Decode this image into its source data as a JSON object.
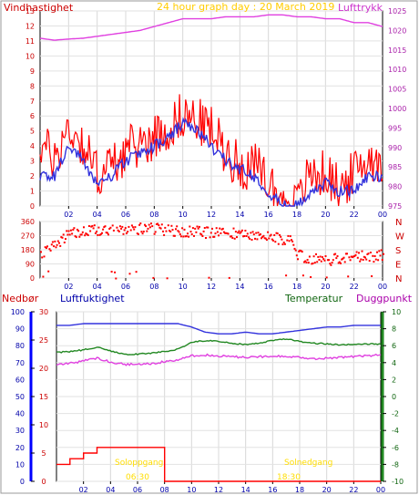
{
  "top": {
    "title": "24 hour graph day : 20 March 2019",
    "left_label": "Vindhastighet",
    "right_label": "Lufttrykk",
    "left_ticks": [
      "0",
      "1",
      "2",
      "3",
      "4",
      "5",
      "6",
      "7",
      "8",
      "9",
      "10",
      "11",
      "12",
      "13"
    ],
    "right_ticks": [
      "975",
      "980",
      "985",
      "990",
      "995",
      "1000",
      "1005",
      "1010",
      "1015",
      "1020",
      "1025"
    ],
    "x_ticks": [
      "02",
      "04",
      "06",
      "08",
      "10",
      "12",
      "14",
      "16",
      "18",
      "20",
      "22",
      "00"
    ]
  },
  "direction": {
    "left_ticks": [
      "0",
      "90",
      "180",
      "270",
      "360"
    ],
    "right_ticks": [
      "N",
      "E",
      "S",
      "W",
      "N"
    ],
    "x_ticks": [
      "02",
      "04",
      "06",
      "08",
      "10",
      "12",
      "14",
      "16",
      "18",
      "20",
      "22",
      "00"
    ]
  },
  "bottom": {
    "label_rain": "Nedbør",
    "label_humidity": "Luftfuktighet",
    "label_temp": "Temperatur",
    "label_dew": "Duggpunkt",
    "rain_ticks": [
      "0",
      "5",
      "10",
      "15",
      "20",
      "25",
      "30"
    ],
    "humidity_ticks": [
      "0",
      "10",
      "20",
      "30",
      "40",
      "50",
      "60",
      "70",
      "80",
      "90",
      "100"
    ],
    "temp_ticks": [
      "-10",
      "-8",
      "-6",
      "-4",
      "-2",
      "0",
      "2",
      "4",
      "6",
      "8",
      "10"
    ],
    "x_ticks": [
      "02",
      "04",
      "06",
      "08",
      "10",
      "12",
      "14",
      "16",
      "18",
      "20",
      "22",
      "00"
    ],
    "sunrise_label": "Soloppgang",
    "sunrise_time": "06:30",
    "sunset_label": "Solnedgang",
    "sunset_time": "18:30"
  },
  "colors": {
    "wind": "#ff0000",
    "wind_avg": "#3333dd",
    "pressure": "#e040e0",
    "title": "#ffcc00",
    "direction_dots": "#ff0000",
    "rain_axis": "#0000ff",
    "humidity": "#3333dd",
    "temp": "#228822",
    "dew": "#e040e0",
    "rain": "#ff0000",
    "sun": "#ffdd00"
  },
  "chart_data": [
    {
      "type": "line",
      "ylabel": "Vindhastighet",
      "ylim": [
        0,
        13
      ],
      "y2label": "Lufttrykk",
      "y2lim": [
        975,
        1025
      ],
      "x_hours": [
        0,
        1,
        2,
        3,
        4,
        5,
        6,
        7,
        8,
        9,
        10,
        11,
        12,
        13,
        14,
        15,
        16,
        17,
        18,
        19,
        20,
        21,
        22,
        23,
        24
      ],
      "series": [
        {
          "name": "Vindhastighet",
          "values": [
            4,
            3,
            5,
            4,
            2,
            2.5,
            3.5,
            4,
            4.5,
            5,
            6,
            5.5,
            5,
            3.5,
            2.5,
            2.5,
            1.5,
            0.2,
            0.5,
            2,
            2,
            1,
            2,
            3,
            3
          ]
        },
        {
          "name": "Vindhastighet snitt",
          "values": [
            2,
            2,
            4,
            3,
            1.5,
            2,
            3,
            3.5,
            4,
            4.5,
            5.5,
            5,
            4,
            3,
            2.5,
            2,
            1,
            0,
            0,
            1,
            1.5,
            1,
            1,
            2,
            2
          ]
        },
        {
          "name": "Lufttrykk",
          "values": [
            1018,
            1017.5,
            1017.8,
            1018,
            1018.5,
            1019,
            1019.5,
            1020,
            1021,
            1022,
            1023,
            1023,
            1023,
            1023.5,
            1023.5,
            1023.5,
            1024,
            1024,
            1023.5,
            1023.5,
            1023,
            1023,
            1022,
            1022,
            1021
          ]
        }
      ]
    },
    {
      "type": "scatter",
      "ylim": [
        0,
        360
      ],
      "series": [
        {
          "name": "Vindretning",
          "x_hours": [
            0,
            0.5,
            1,
            1.5,
            2,
            3,
            4,
            5,
            6,
            7,
            8,
            9,
            10,
            11,
            12,
            13,
            14,
            15,
            16,
            17,
            17.5,
            18,
            19,
            20,
            21,
            22,
            23,
            24
          ],
          "values": [
            150,
            180,
            220,
            250,
            290,
            300,
            310,
            320,
            320,
            320,
            320,
            310,
            300,
            300,
            290,
            290,
            290,
            280,
            270,
            250,
            240,
            150,
            130,
            120,
            130,
            150,
            140,
            150
          ]
        }
      ]
    },
    {
      "type": "line",
      "ylim": [
        0,
        100
      ],
      "y2lim": [
        -10,
        10
      ],
      "y3lim": [
        0,
        30
      ],
      "x_hours": [
        0,
        1,
        2,
        3,
        4,
        5,
        6,
        7,
        8,
        9,
        10,
        11,
        12,
        13,
        14,
        15,
        16,
        17,
        18,
        19,
        20,
        21,
        22,
        23,
        24
      ],
      "series": [
        {
          "name": "Luftfuktighet",
          "values": [
            92,
            92,
            93,
            93,
            93,
            93,
            93,
            93,
            93,
            93,
            91,
            88,
            87,
            87,
            88,
            87,
            87,
            88,
            89,
            90,
            91,
            91,
            92,
            92,
            92
          ]
        },
        {
          "name": "Temperatur",
          "values": [
            5.2,
            5.3,
            5.5,
            5.8,
            5.4,
            5.0,
            5.0,
            5.1,
            5.3,
            5.6,
            6.4,
            6.6,
            6.5,
            6.3,
            6.1,
            6.3,
            6.6,
            6.8,
            6.5,
            6.3,
            6.2,
            6.1,
            6.2,
            6.2,
            6.2
          ]
        },
        {
          "name": "Duggpunkt",
          "values": [
            3.8,
            3.9,
            4.2,
            4.5,
            4.1,
            3.8,
            3.8,
            3.9,
            4.1,
            4.3,
            4.8,
            4.9,
            4.8,
            4.7,
            4.6,
            4.7,
            4.7,
            4.8,
            4.6,
            4.4,
            4.5,
            4.6,
            4.7,
            4.8,
            4.9
          ]
        },
        {
          "name": "Nedbør",
          "values": [
            3,
            4,
            5,
            6,
            6,
            6,
            6,
            6,
            0,
            0,
            0,
            0,
            0,
            0,
            0,
            0,
            0,
            0,
            0,
            0,
            0,
            0,
            0,
            0,
            0
          ]
        }
      ]
    }
  ]
}
